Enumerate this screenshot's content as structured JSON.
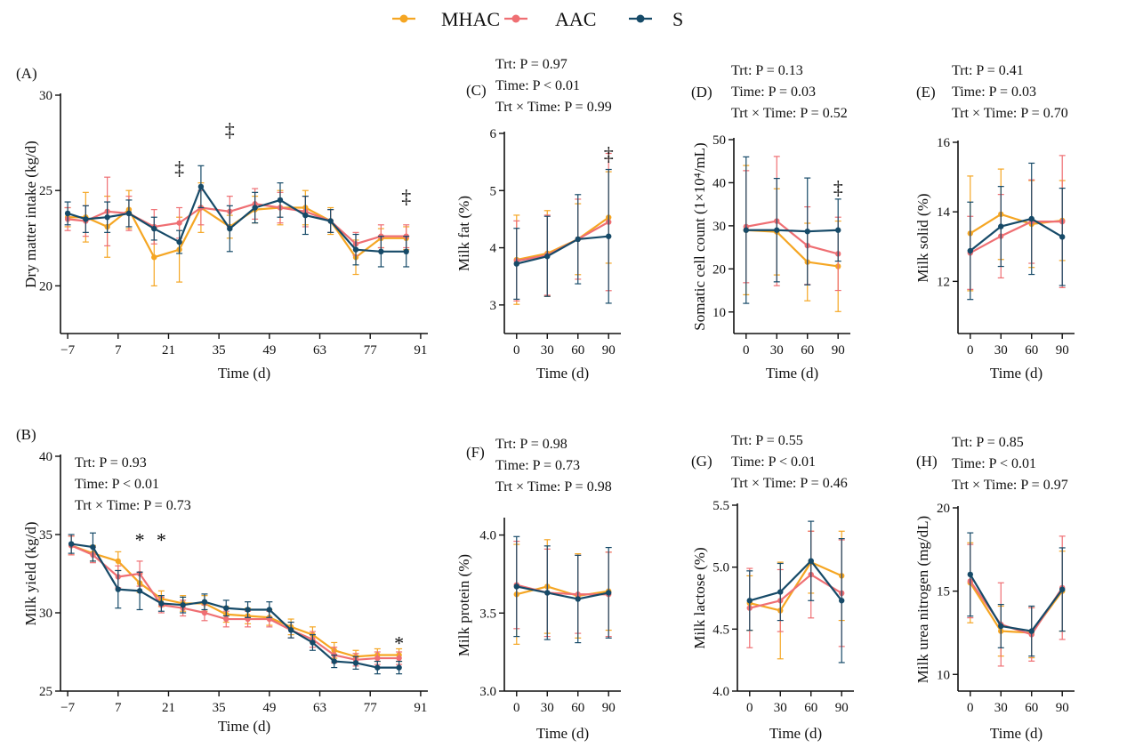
{
  "legend": [
    {
      "name": "MHAC",
      "color": "#F5A623"
    },
    {
      "name": "AAC",
      "color": "#EF6F73"
    },
    {
      "name": "S",
      "color": "#164A68"
    }
  ],
  "chart_data": [
    {
      "id": "A",
      "panel_label": "(A)",
      "type": "line",
      "xlabel": "Time (d)",
      "ylabel": "Dry matter intake (kg/d)",
      "xlim": [
        -9,
        93
      ],
      "ylim": [
        17.5,
        30
      ],
      "xticks": [
        -7,
        7,
        21,
        35,
        49,
        63,
        77,
        91
      ],
      "xtick_labels": [
        "−7",
        "7",
        "21",
        "35",
        "49",
        "63",
        "77",
        "91"
      ],
      "yticks": [
        20,
        25,
        30
      ],
      "ytick_labels": [
        "20",
        "25",
        "30"
      ],
      "stats": [],
      "x": [
        -7,
        -2,
        4,
        10,
        17,
        24,
        30,
        38,
        45,
        52,
        59,
        66,
        73,
        80,
        87
      ],
      "series": [
        {
          "name": "MHAC",
          "color": "#F5A623",
          "values": [
            23.6,
            23.6,
            23.1,
            24.0,
            21.5,
            21.9,
            24.1,
            23.1,
            24.0,
            24.1,
            24.1,
            23.4,
            21.5,
            22.5,
            22.5
          ],
          "errors": [
            0.5,
            1.3,
            1.6,
            1.0,
            1.5,
            1.7,
            1.3,
            0.6,
            0.7,
            0.9,
            0.9,
            0.7,
            0.9,
            0.5,
            0.6
          ]
        },
        {
          "name": "AAC",
          "color": "#EF6F73",
          "values": [
            23.5,
            23.4,
            23.9,
            23.8,
            23.1,
            23.3,
            24.1,
            23.9,
            24.3,
            24.1,
            23.9,
            23.4,
            22.2,
            22.6,
            22.6
          ],
          "errors": [
            0.6,
            0.8,
            1.8,
            0.9,
            0.9,
            0.8,
            0.9,
            0.8,
            0.8,
            0.8,
            0.8,
            0.6,
            0.6,
            0.6,
            0.6
          ]
        },
        {
          "name": "S",
          "color": "#164A68",
          "values": [
            23.8,
            23.5,
            23.6,
            23.8,
            23.0,
            22.3,
            25.2,
            23.0,
            24.1,
            24.5,
            23.7,
            23.4,
            21.9,
            21.8,
            21.8
          ],
          "errors": [
            0.6,
            0.7,
            0.8,
            0.7,
            0.6,
            0.6,
            1.1,
            1.2,
            0.8,
            0.9,
            1.0,
            0.6,
            0.8,
            0.8,
            0.8
          ]
        }
      ],
      "markers": [
        {
          "x": 24,
          "y": 26.2,
          "symbol": "‡"
        },
        {
          "x": 38,
          "y": 28.2,
          "symbol": "‡"
        },
        {
          "x": 87,
          "y": 24.7,
          "symbol": "‡"
        }
      ]
    },
    {
      "id": "B",
      "panel_label": "(B)",
      "type": "line",
      "xlabel": "Time (d)",
      "ylabel": "Milk yield (kg/d)",
      "xlim": [
        -9,
        93
      ],
      "ylim": [
        25,
        40
      ],
      "xticks": [
        -7,
        7,
        21,
        35,
        49,
        63,
        77,
        91
      ],
      "xtick_labels": [
        "−7",
        "7",
        "21",
        "35",
        "49",
        "63",
        "77",
        "91"
      ],
      "yticks": [
        25,
        30,
        35,
        40
      ],
      "ytick_labels": [
        "25",
        "30",
        "35",
        "40"
      ],
      "stats": [
        "Trt: P = 0.93",
        "Time: P < 0.01",
        "Trt × Time: P = 0.73"
      ],
      "x": [
        -6,
        0,
        7,
        13,
        19,
        25,
        31,
        37,
        43,
        49,
        55,
        61,
        67,
        73,
        79,
        85
      ],
      "series": [
        {
          "name": "MHAC",
          "color": "#F5A623",
          "values": [
            34.3,
            33.8,
            33.3,
            31.9,
            30.9,
            30.6,
            30.6,
            29.9,
            29.8,
            29.7,
            29.1,
            28.6,
            27.6,
            27.2,
            27.3,
            27.3
          ],
          "errors": [
            0.6,
            0.5,
            0.6,
            0.6,
            0.5,
            0.5,
            0.5,
            0.5,
            0.5,
            0.5,
            0.5,
            0.5,
            0.5,
            0.4,
            0.4,
            0.4
          ]
        },
        {
          "name": "AAC",
          "color": "#EF6F73",
          "values": [
            34.3,
            33.7,
            32.3,
            32.5,
            30.5,
            30.3,
            30.0,
            29.6,
            29.6,
            29.6,
            28.9,
            28.3,
            27.3,
            27.0,
            27.1,
            27.1
          ],
          "errors": [
            0.6,
            0.5,
            0.7,
            0.8,
            0.5,
            0.5,
            0.5,
            0.5,
            0.5,
            0.5,
            0.5,
            0.5,
            0.5,
            0.4,
            0.4,
            0.4
          ]
        },
        {
          "name": "S",
          "color": "#164A68",
          "values": [
            34.4,
            34.2,
            31.5,
            31.4,
            30.6,
            30.5,
            30.7,
            30.3,
            30.2,
            30.2,
            28.9,
            28.1,
            26.9,
            26.8,
            26.5,
            26.5
          ],
          "errors": [
            0.6,
            0.9,
            1.2,
            1.2,
            0.5,
            0.5,
            0.5,
            0.5,
            0.5,
            0.5,
            0.5,
            0.5,
            0.4,
            0.4,
            0.4,
            0.4
          ]
        }
      ],
      "markers": [
        {
          "x": 13,
          "y": 34.7,
          "symbol": "*"
        },
        {
          "x": 19,
          "y": 34.7,
          "symbol": "*"
        },
        {
          "x": 85,
          "y": 28.1,
          "symbol": "*"
        }
      ]
    },
    {
      "id": "C",
      "panel_label": "(C)",
      "type": "line",
      "xlabel": "Time (d)",
      "ylabel": "Milk fat (%)",
      "xlim": [
        -12,
        102
      ],
      "ylim": [
        2.5,
        6
      ],
      "xticks": [
        0,
        30,
        60,
        90
      ],
      "xtick_labels": [
        "0",
        "30",
        "60",
        "90"
      ],
      "yticks": [
        3,
        4,
        5,
        6
      ],
      "ytick_labels": [
        "3",
        "4",
        "5",
        "6"
      ],
      "stats": [
        "Trt: P = 0.97",
        "Time: P < 0.01",
        "Trt × Time: P = 0.99"
      ],
      "x": [
        0,
        30,
        60,
        90
      ],
      "series": [
        {
          "name": "MHAC",
          "color": "#F5A623",
          "values": [
            3.79,
            3.9,
            4.15,
            4.53
          ],
          "errors": [
            0.78,
            0.75,
            0.62,
            0.8
          ]
        },
        {
          "name": "AAC",
          "color": "#EF6F73",
          "values": [
            3.77,
            3.87,
            4.15,
            4.45
          ],
          "errors": [
            0.7,
            0.7,
            0.7,
            1.2
          ]
        },
        {
          "name": "S",
          "color": "#164A68",
          "values": [
            3.72,
            3.85,
            4.15,
            4.2
          ],
          "errors": [
            0.62,
            0.7,
            0.78,
            1.17
          ]
        }
      ],
      "markers": [
        {
          "x": 90,
          "y": 5.65,
          "symbol": "‡"
        }
      ]
    },
    {
      "id": "D",
      "panel_label": "(D)",
      "type": "line",
      "xlabel": "Time (d)",
      "ylabel": "Somatic cell count (1×10⁴/mL)",
      "xlim": [
        -12,
        102
      ],
      "ylim": [
        5,
        50
      ],
      "xticks": [
        0,
        30,
        60,
        90
      ],
      "xtick_labels": [
        "0",
        "30",
        "60",
        "90"
      ],
      "yticks": [
        10,
        20,
        30,
        40,
        50
      ],
      "ytick_labels": [
        "10",
        "20",
        "30",
        "40",
        "50"
      ],
      "stats": [
        "Trt: P = 0.13",
        "Time: P = 0.03",
        "Trt × Time: P = 0.52"
      ],
      "x": [
        0,
        30,
        60,
        90
      ],
      "series": [
        {
          "name": "MHAC",
          "color": "#F5A623",
          "values": [
            29.0,
            28.6,
            21.6,
            20.6
          ],
          "errors": [
            15.0,
            10.0,
            9.0,
            10.5
          ]
        },
        {
          "name": "AAC",
          "color": "#EF6F73",
          "values": [
            29.8,
            31.1,
            25.4,
            23.5
          ],
          "errors": [
            13.0,
            15.0,
            9.0,
            8.5
          ]
        },
        {
          "name": "S",
          "color": "#164A68",
          "values": [
            29.0,
            29.0,
            28.7,
            29.0
          ],
          "errors": [
            17.0,
            12.0,
            12.4,
            7.2
          ]
        }
      ],
      "markers": [
        {
          "x": 90,
          "y": 39.0,
          "symbol": "‡"
        }
      ]
    },
    {
      "id": "E",
      "panel_label": "(E)",
      "type": "line",
      "xlabel": "Time (d)",
      "ylabel": "Milk solid (%)",
      "xlim": [
        -12,
        102
      ],
      "ylim": [
        10.5,
        16
      ],
      "xticks": [
        0,
        30,
        60,
        90
      ],
      "xtick_labels": [
        "0",
        "30",
        "60",
        "90"
      ],
      "yticks": [
        12,
        14,
        16
      ],
      "ytick_labels": [
        "12",
        "14",
        "16"
      ],
      "stats": [
        "Trt: P = 0.41",
        "Time: P = 0.03",
        "Trt × Time: P = 0.70"
      ],
      "x": [
        0,
        30,
        60,
        90
      ],
      "series": [
        {
          "name": "MHAC",
          "color": "#F5A623",
          "values": [
            13.38,
            13.93,
            13.65,
            13.75
          ],
          "errors": [
            1.65,
            1.3,
            1.25,
            1.15
          ]
        },
        {
          "name": "AAC",
          "color": "#EF6F73",
          "values": [
            12.82,
            13.3,
            13.72,
            13.72
          ],
          "errors": [
            1.05,
            1.2,
            1.2,
            1.9
          ]
        },
        {
          "name": "S",
          "color": "#164A68",
          "values": [
            12.88,
            13.58,
            13.8,
            13.28
          ],
          "errors": [
            1.4,
            1.15,
            1.6,
            1.4
          ]
        }
      ],
      "markers": []
    },
    {
      "id": "F",
      "panel_label": "(F)",
      "type": "line",
      "xlabel": "Time (d)",
      "ylabel": "Milk protein (%)",
      "xlim": [
        -12,
        102
      ],
      "ylim": [
        3.0,
        4.1
      ],
      "xticks": [
        0,
        30,
        60,
        90
      ],
      "xtick_labels": [
        "0",
        "30",
        "60",
        "90"
      ],
      "yticks": [
        3.0,
        3.5,
        4.0
      ],
      "ytick_labels": [
        "3.0",
        "3.5",
        "4.0"
      ],
      "stats": [
        "Trt: P = 0.98",
        "Time: P = 0.73",
        "Trt × Time: P = 0.98"
      ],
      "x": [
        0,
        30,
        60,
        90
      ],
      "series": [
        {
          "name": "MHAC",
          "color": "#F5A623",
          "values": [
            3.62,
            3.67,
            3.61,
            3.64
          ],
          "errors": [
            0.32,
            0.3,
            0.27,
            0.25
          ]
        },
        {
          "name": "AAC",
          "color": "#EF6F73",
          "values": [
            3.68,
            3.63,
            3.62,
            3.62
          ],
          "errors": [
            0.28,
            0.28,
            0.25,
            0.27
          ]
        },
        {
          "name": "S",
          "color": "#164A68",
          "values": [
            3.67,
            3.63,
            3.59,
            3.63
          ],
          "errors": [
            0.32,
            0.3,
            0.28,
            0.29
          ]
        }
      ],
      "markers": []
    },
    {
      "id": "G",
      "panel_label": "(G)",
      "type": "line",
      "xlabel": "Time (d)",
      "ylabel": "Milk lactose (%)",
      "xlim": [
        -12,
        102
      ],
      "ylim": [
        4.0,
        5.5
      ],
      "xticks": [
        0,
        30,
        60,
        90
      ],
      "xtick_labels": [
        "0",
        "30",
        "60",
        "90"
      ],
      "yticks": [
        4.0,
        4.5,
        5.0,
        5.5
      ],
      "ytick_labels": [
        "4.0",
        "4.5",
        "5.0",
        "5.5"
      ],
      "stats": [
        "Trt: P = 0.55",
        "Time: P < 0.01",
        "Trt × Time: P = 0.46"
      ],
      "x": [
        0,
        30,
        60,
        90
      ],
      "series": [
        {
          "name": "MHAC",
          "color": "#F5A623",
          "values": [
            4.71,
            4.65,
            5.04,
            4.93
          ],
          "errors": [
            0.22,
            0.39,
            0.25,
            0.36
          ]
        },
        {
          "name": "AAC",
          "color": "#EF6F73",
          "values": [
            4.67,
            4.73,
            4.94,
            4.79
          ],
          "errors": [
            0.32,
            0.25,
            0.35,
            0.43
          ]
        },
        {
          "name": "S",
          "color": "#164A68",
          "values": [
            4.73,
            4.8,
            5.05,
            4.73
          ],
          "errors": [
            0.24,
            0.23,
            0.32,
            0.5
          ]
        }
      ],
      "markers": []
    },
    {
      "id": "H",
      "panel_label": "(H)",
      "type": "line",
      "xlabel": "Time (d)",
      "ylabel": "Milk urea nitrogen (mg/dL)",
      "xlim": [
        -12,
        102
      ],
      "ylim": [
        9,
        20
      ],
      "xticks": [
        0,
        30,
        60,
        90
      ],
      "xtick_labels": [
        "0",
        "30",
        "60",
        "90"
      ],
      "yticks": [
        10,
        15,
        20
      ],
      "ytick_labels": [
        "10",
        "15",
        "20"
      ],
      "stats": [
        "Trt: P = 0.85",
        "Time: P < 0.01",
        "Trt × Time: P = 0.97"
      ],
      "x": [
        0,
        30,
        60,
        90
      ],
      "series": [
        {
          "name": "MHAC",
          "color": "#F5A623",
          "values": [
            15.5,
            12.6,
            12.5,
            15.0
          ],
          "errors": [
            2.4,
            1.5,
            1.5,
            2.4
          ]
        },
        {
          "name": "AAC",
          "color": "#EF6F73",
          "values": [
            15.6,
            13.0,
            12.4,
            15.2
          ],
          "errors": [
            2.2,
            2.5,
            1.6,
            3.1
          ]
        },
        {
          "name": "S",
          "color": "#164A68",
          "values": [
            16.0,
            12.9,
            12.6,
            15.1
          ],
          "errors": [
            2.5,
            1.3,
            1.5,
            2.5
          ]
        }
      ],
      "markers": []
    }
  ]
}
